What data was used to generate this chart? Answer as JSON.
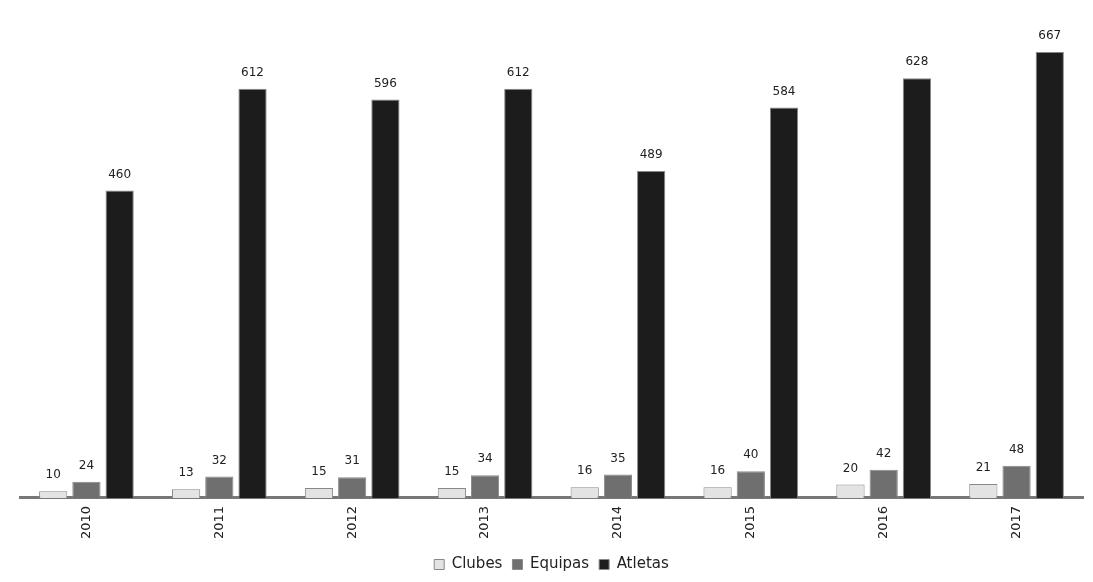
{
  "chart_data": {
    "type": "bar",
    "categories": [
      "2010",
      "2011",
      "2012",
      "2013",
      "2014",
      "2015",
      "2016",
      "2017"
    ],
    "series": [
      {
        "name": "Clubes",
        "color": "#e3e3e3",
        "values": [
          10,
          13,
          15,
          15,
          16,
          16,
          20,
          21
        ]
      },
      {
        "name": "Equipas",
        "color": "#6f6f6f",
        "values": [
          24,
          32,
          31,
          34,
          35,
          40,
          42,
          48
        ]
      },
      {
        "name": "Atletas",
        "color": "#1c1c1c",
        "values": [
          460,
          612,
          596,
          612,
          489,
          584,
          628,
          667
        ]
      }
    ],
    "data_labels": true,
    "legend": "bottom",
    "grid": false
  }
}
